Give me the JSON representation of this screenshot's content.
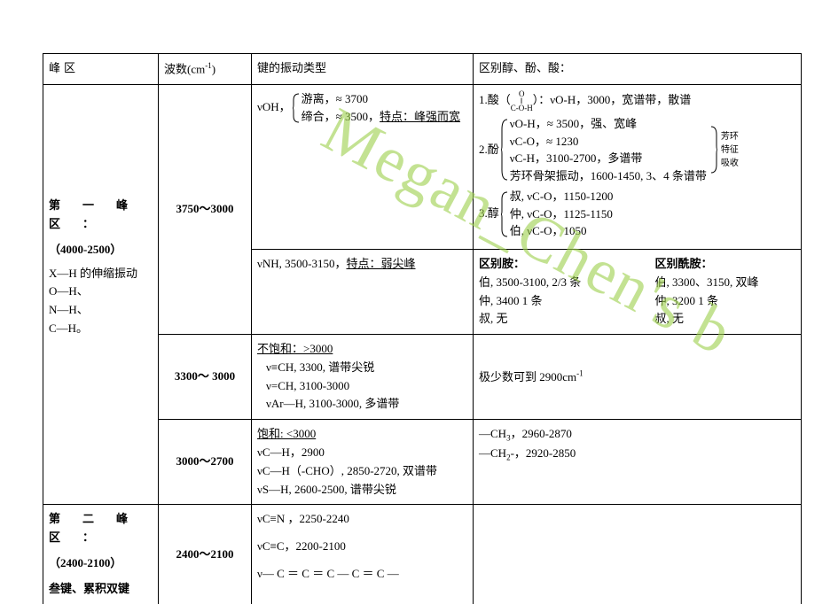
{
  "headers": {
    "region": "峰区",
    "wavenumber_html": "波数(cm<span class=\"sup\">-1</span>)",
    "bond_type": "键的振动类型",
    "distinguish_aap": "区别醇、酚、酸："
  },
  "region1": {
    "title_html": "第　一　峰　区　：",
    "range_bold": "（4000-2500）",
    "desc_lines": [
      "X—H 的伸缩振动",
      "O—H、",
      "N—H、",
      "C—H。"
    ]
  },
  "row_3750_3000": {
    "wavenumber": "3750～3000",
    "bond_top": {
      "prefix": "νOH，",
      "items": [
        "游离，≈ 3700",
        "缔合，≈ 3500，<span class=\"under\">特点：峰强而宽</span>"
      ]
    },
    "bond_bottom_html": "νNH, 3500-3150，<span class=\"under\">特点：弱尖峰</span>",
    "right_top": {
      "acid_html": "1.酸（<span class=\"coh\">O<br>‖<br>C-O-H</span>）：νO-H，3000，宽谱带，散谱",
      "phenol_label": "2.酚",
      "phenol_items": [
        "νO-H，≈ 3500，强、宽峰",
        "νC-O，≈ 1230",
        "νC-H，3100-2700，多谱带",
        "芳环骨架振动，1600-1450, 3、4 条谱带"
      ],
      "phenol_side": [
        "芳环",
        "特征",
        "吸收"
      ],
      "alcohol_label": "3.醇",
      "alcohol_items": [
        "叔, νC-O，1150-1200",
        "仲, νC-O，1125-1150",
        "伯, νC-O，1050"
      ]
    },
    "right_bottom": {
      "amine_title": "区别胺：",
      "amine_lines": [
        "伯, 3500-3100, 2/3 条",
        "仲, 3400 1 条",
        "叔, 无"
      ],
      "amide_title": "区别酰胺：",
      "amide_lines": [
        "伯, 3300、3150, 双峰",
        "仲, 3200 1 条",
        "叔, 无"
      ]
    }
  },
  "row_3300_3000": {
    "wavenumber": "3300～ 3000",
    "bond": {
      "header_html": "<span class=\"under\">不饱和：&gt;3000</span>",
      "lines": [
        "ν≡CH, 3300, 谱带尖锐",
        "ν=CH, 3100-3000",
        "νAr—H, 3100-3000, 多谱带"
      ]
    },
    "right_html": "极少数可到 2900cm<span class=\"sup\">-1</span>"
  },
  "row_3000_2700": {
    "wavenumber": "3000～2700",
    "bond": {
      "header_html": "<span class=\"under\">饱和: &lt;3000</span>",
      "lines": [
        "νC—H，2900",
        "νC—H（-CHO）, 2850-2720, 双谱带",
        "νS—H, 2600-2500, 谱带尖锐"
      ]
    },
    "right_lines": [
      "—CH<span class=\"sub\">3</span>，2960-2870",
      "—CH<span class=\"sub\">2</span>-，2920-2850"
    ]
  },
  "region2": {
    "title_html": "第　二　峰　区　：",
    "range_bold": "（2400-2100）",
    "desc": "叁键、累积双键"
  },
  "row_2400_2100": {
    "wavenumber": "2400～2100",
    "bond_lines": [
      "νC≡N ，2250-2240",
      "νC≡C，2200-2100",
      "ν— C ＝ C ＝ C — C ＝ C  —"
    ]
  },
  "watermark": "Megan_Chen's  b"
}
